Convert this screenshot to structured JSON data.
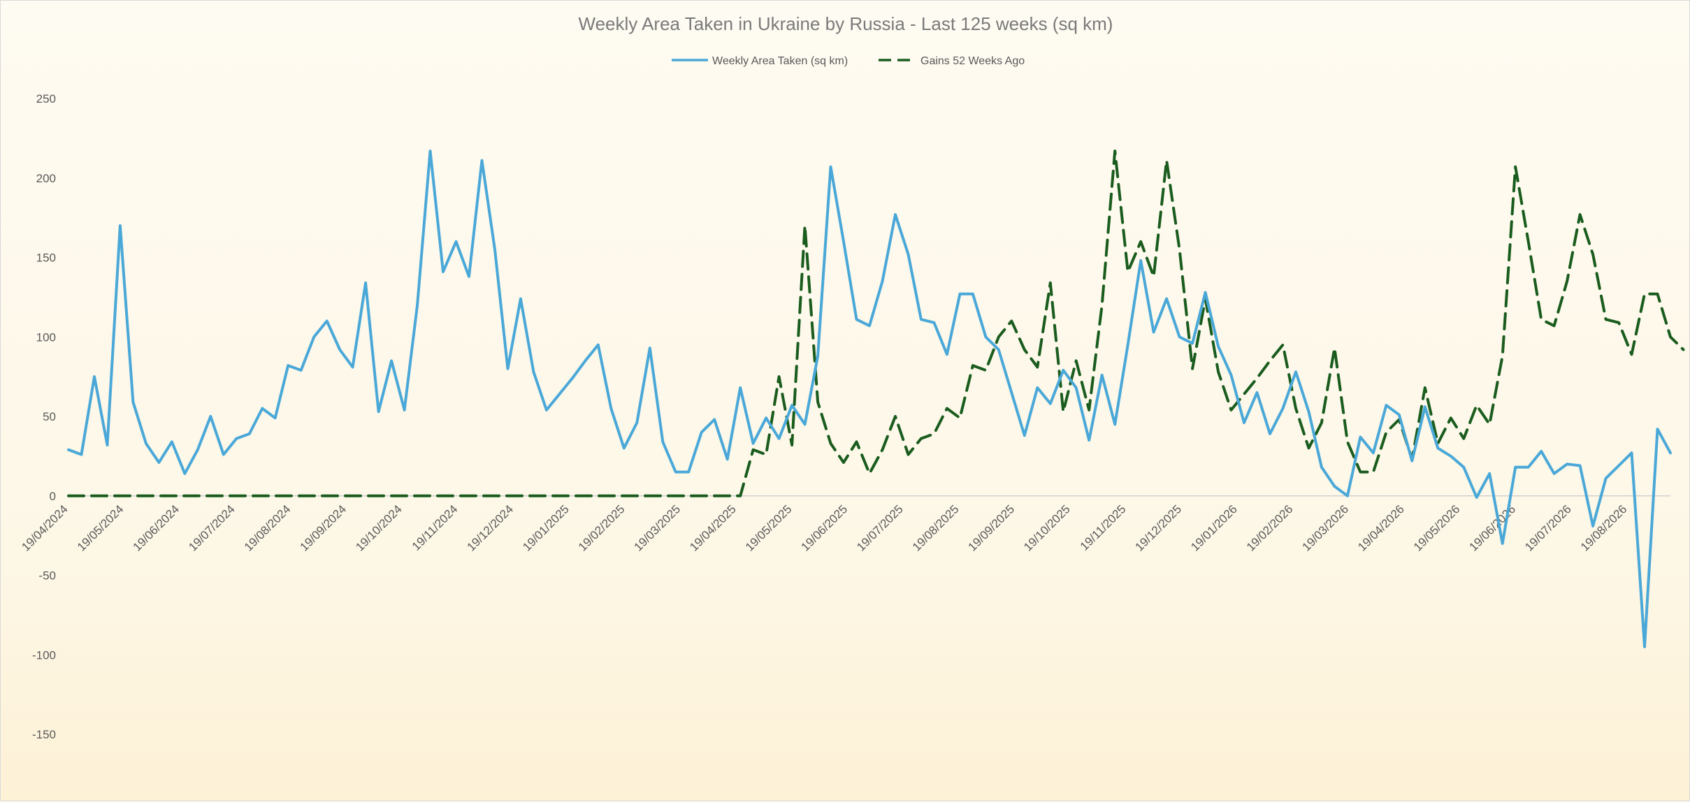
{
  "chart_data": {
    "type": "line",
    "title": "Weekly Area Taken in Ukraine by Russia - Last 125 weeks (sq km)",
    "xlabel": "",
    "ylabel": "",
    "ylim": [
      -150,
      250
    ],
    "yticks": [
      250,
      200,
      150,
      100,
      50,
      0,
      -50,
      -100,
      -150
    ],
    "grid": false,
    "legend_position": "top",
    "x_tick_labels": [
      "19/04/2024",
      "19/05/2024",
      "19/06/2024",
      "19/07/2024",
      "19/08/2024",
      "19/09/2024",
      "19/10/2024",
      "19/11/2024",
      "19/12/2024",
      "19/01/2025",
      "19/02/2025",
      "19/03/2025",
      "19/04/2025",
      "19/05/2025",
      "19/06/2025",
      "19/07/2025",
      "19/08/2025",
      "19/09/2025",
      "19/10/2025",
      "19/11/2025",
      "19/12/2025",
      "19/01/2026",
      "19/02/2026",
      "19/03/2026",
      "19/04/2026",
      "19/05/2026",
      "19/06/2026",
      "19/07/2026",
      "19/08/2026"
    ],
    "series": [
      {
        "name": "Weekly Area Taken (sq km)",
        "color": "#4aa8d8",
        "dash": false,
        "values": [
          29,
          26,
          75,
          32,
          170,
          59,
          33,
          21,
          34,
          14,
          29,
          50,
          26,
          36,
          39,
          55,
          49,
          82,
          79,
          100,
          110,
          92,
          81,
          134,
          53,
          85,
          54,
          120,
          217,
          141,
          160,
          138,
          211,
          155,
          80,
          124,
          78,
          54,
          64,
          74,
          85,
          95,
          55,
          30,
          46,
          93,
          34,
          15,
          15,
          40,
          48,
          23,
          68,
          33,
          49,
          36,
          57,
          45,
          88,
          207,
          160,
          111,
          107,
          135,
          177,
          152,
          111,
          109,
          89,
          127,
          127,
          100,
          92,
          65,
          38,
          68,
          58,
          79,
          68,
          35,
          76,
          45,
          95,
          148,
          103,
          124,
          100,
          96,
          128,
          94,
          76,
          46,
          65,
          39,
          55,
          78,
          53,
          18,
          6,
          0,
          37,
          27,
          57,
          51,
          22,
          56,
          30,
          25,
          18,
          -1,
          14,
          -30,
          18,
          18,
          28,
          14,
          20,
          19,
          -19,
          11,
          19,
          27,
          -95,
          42,
          27
        ]
      },
      {
        "name": "Gains 52 Weeks Ago",
        "color": "#1a5c1e",
        "dash": true,
        "values": [
          0,
          0,
          0,
          0,
          0,
          0,
          0,
          0,
          0,
          0,
          0,
          0,
          0,
          0,
          0,
          0,
          0,
          0,
          0,
          0,
          0,
          0,
          0,
          0,
          0,
          0,
          0,
          0,
          0,
          0,
          0,
          0,
          0,
          0,
          0,
          0,
          0,
          0,
          0,
          0,
          0,
          0,
          0,
          0,
          0,
          0,
          0,
          0,
          0,
          0,
          0,
          0,
          0,
          29,
          26,
          75,
          32,
          170,
          59,
          33,
          21,
          34,
          14,
          29,
          50,
          26,
          36,
          39,
          55,
          49,
          82,
          79,
          100,
          110,
          92,
          81,
          134,
          53,
          85,
          54,
          120,
          217,
          141,
          160,
          138,
          211,
          155,
          80,
          124,
          78,
          54,
          64,
          74,
          85,
          95,
          55,
          30,
          46,
          93,
          34,
          15,
          15,
          40,
          48,
          23,
          68,
          33,
          49,
          36,
          57,
          45,
          88,
          207,
          160,
          111,
          107,
          135,
          177,
          152,
          111,
          109,
          89,
          127,
          127,
          100,
          92
        ]
      }
    ]
  }
}
